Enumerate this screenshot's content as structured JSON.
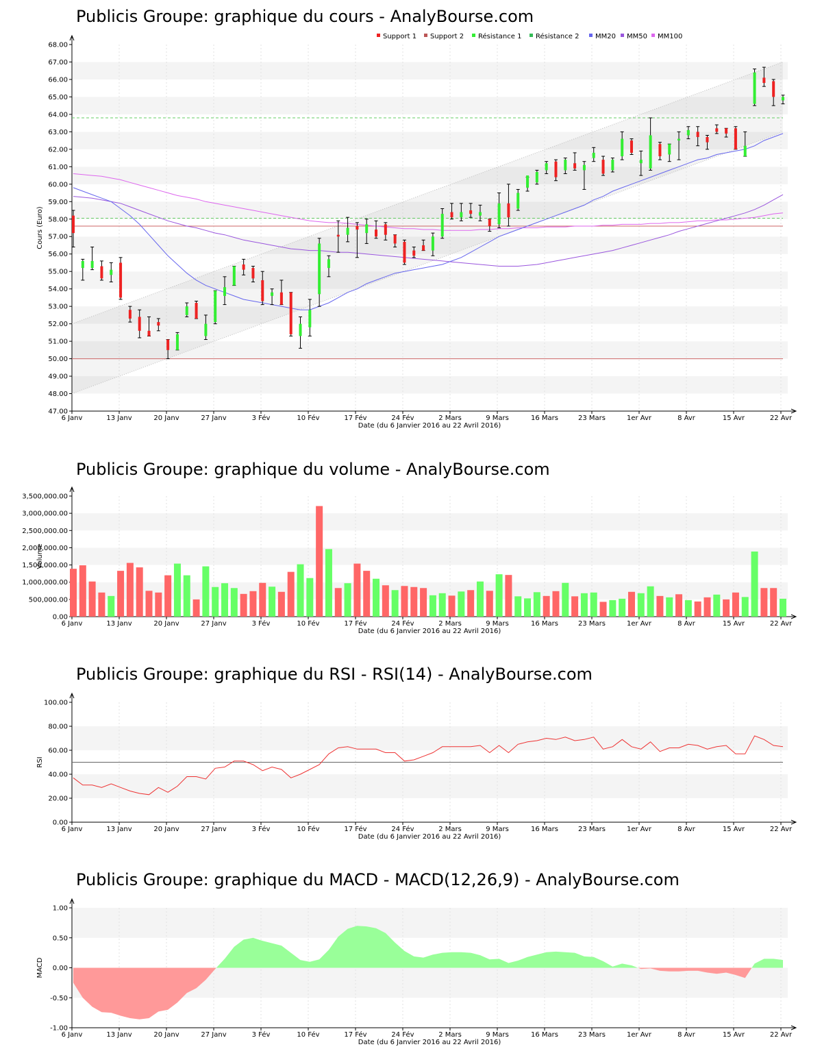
{
  "xlabel": "Date (du 6 Janvier 2016 au 22 Avril 2016)",
  "x_ticks": [
    "6 Janv",
    "13 Janv",
    "20 Janv",
    "27 Janv",
    "3 Fév",
    "10 Fév",
    "17 Fév",
    "24 Fév",
    "2 Mars",
    "9 Mars",
    "16 Mars",
    "23 Mars",
    "1er Avr",
    "8 Avr",
    "15 Avr",
    "22 Avr"
  ],
  "colors": {
    "up": "#33ee33",
    "down": "#ee2222",
    "vol_up": "#66ff66",
    "vol_down": "#ff6666",
    "support": "#cc6666",
    "resistance": "#66cc66",
    "mm20": "#6666ee",
    "mm50": "#9955dd",
    "mm100": "#dd66ee",
    "rsi": "#ee3333",
    "macd_pos": "#99ff99",
    "macd_neg": "#ff9999"
  },
  "chart_data": [
    {
      "type": "candlestick",
      "title": "Publicis Groupe: graphique du cours - AnalyBourse.com",
      "ylabel": "Cours (Euro)",
      "ylim": [
        47,
        68
      ],
      "y_ticks": [
        "47.00",
        "48.00",
        "49.00",
        "50.00",
        "51.00",
        "52.00",
        "53.00",
        "54.00",
        "55.00",
        "56.00",
        "57.00",
        "58.00",
        "59.00",
        "60.00",
        "61.00",
        "62.00",
        "63.00",
        "64.00",
        "65.00",
        "66.00",
        "67.00",
        "68.00"
      ],
      "legend": [
        "Support 1",
        "Support 2",
        "Résistance 1",
        "Résistance 2",
        "MM20",
        "MM50",
        "MM100"
      ],
      "legend_position": "top-right",
      "support_levels": [
        50.0,
        57.6
      ],
      "resistance_levels": [
        58.05,
        63.8
      ],
      "trend_channel": {
        "lower": [
          [
            0,
            48.0
          ],
          [
            1,
            63.0
          ]
        ],
        "upper": [
          [
            0,
            52.0
          ],
          [
            1,
            67.0
          ]
        ]
      },
      "candles": [
        [
          58.2,
          58.5,
          56.4,
          57.2
        ],
        [
          55.2,
          55.7,
          54.5,
          55.6
        ],
        [
          55.2,
          56.4,
          55.1,
          55.6
        ],
        [
          55.3,
          55.6,
          54.5,
          54.6
        ],
        [
          54.8,
          55.5,
          54.4,
          55.1
        ],
        [
          55.5,
          55.8,
          53.4,
          53.5
        ],
        [
          52.8,
          53.0,
          52.1,
          52.3
        ],
        [
          52.4,
          52.8,
          51.2,
          51.6
        ],
        [
          51.6,
          52.4,
          51.3,
          51.3
        ],
        [
          52.1,
          52.3,
          51.6,
          51.9
        ],
        [
          51.1,
          51.1,
          50.0,
          50.5
        ],
        [
          50.5,
          51.5,
          50.5,
          51.4
        ],
        [
          52.5,
          53.2,
          52.4,
          53.0
        ],
        [
          53.2,
          53.3,
          52.3,
          52.3
        ],
        [
          51.3,
          52.5,
          51.1,
          52.0
        ],
        [
          52.1,
          53.9,
          52.0,
          53.9
        ],
        [
          53.6,
          54.7,
          53.1,
          54.1
        ],
        [
          54.2,
          55.3,
          54.2,
          55.3
        ],
        [
          55.4,
          55.7,
          54.8,
          55.1
        ],
        [
          55.2,
          55.3,
          54.4,
          54.6
        ],
        [
          54.5,
          55.0,
          53.1,
          53.3
        ],
        [
          53.6,
          54.0,
          53.1,
          53.8
        ],
        [
          53.8,
          54.5,
          53.1,
          53.1
        ],
        [
          53.8,
          53.8,
          51.3,
          51.4
        ],
        [
          51.3,
          52.4,
          50.6,
          52.0
        ],
        [
          51.8,
          53.4,
          51.3,
          52.8
        ],
        [
          53.7,
          56.9,
          53.0,
          56.6
        ],
        [
          55.2,
          55.9,
          54.7,
          55.7
        ],
        [
          57.1,
          57.9,
          56.1,
          57.0
        ],
        [
          57.1,
          58.1,
          56.7,
          57.5
        ],
        [
          57.6,
          57.8,
          55.8,
          57.4
        ],
        [
          57.2,
          58.0,
          56.6,
          57.7
        ],
        [
          57.4,
          57.9,
          56.9,
          57.0
        ],
        [
          57.7,
          57.8,
          56.8,
          57.1
        ],
        [
          57.1,
          57.1,
          56.4,
          56.6
        ],
        [
          56.7,
          56.8,
          55.4,
          55.5
        ],
        [
          56.2,
          56.4,
          55.8,
          55.9
        ],
        [
          56.5,
          56.8,
          56.2,
          56.2
        ],
        [
          56.2,
          57.2,
          55.9,
          57.0
        ],
        [
          57.0,
          58.6,
          56.9,
          58.3
        ],
        [
          58.4,
          58.9,
          58.0,
          58.1
        ],
        [
          58.1,
          58.9,
          57.9,
          58.4
        ],
        [
          58.5,
          58.9,
          58.1,
          58.3
        ],
        [
          58.2,
          58.8,
          57.9,
          58.4
        ],
        [
          58.0,
          58.0,
          57.3,
          57.6
        ],
        [
          57.7,
          59.5,
          57.5,
          58.9
        ],
        [
          58.9,
          60.0,
          57.6,
          58.1
        ],
        [
          58.6,
          59.7,
          58.5,
          59.5
        ],
        [
          59.8,
          60.4,
          59.6,
          60.5
        ],
        [
          60.1,
          60.8,
          60.0,
          60.7
        ],
        [
          60.8,
          61.3,
          60.6,
          61.2
        ],
        [
          61.3,
          61.4,
          60.2,
          60.4
        ],
        [
          60.8,
          61.5,
          60.6,
          61.4
        ],
        [
          61.2,
          61.8,
          60.8,
          60.9
        ],
        [
          60.8,
          61.3,
          59.7,
          61.1
        ],
        [
          61.5,
          62.1,
          61.3,
          61.8
        ],
        [
          61.4,
          61.6,
          60.5,
          60.6
        ],
        [
          60.8,
          61.5,
          60.7,
          61.4
        ],
        [
          61.6,
          63.0,
          61.4,
          62.6
        ],
        [
          62.5,
          62.6,
          61.7,
          61.8
        ],
        [
          61.2,
          61.9,
          60.5,
          61.4
        ],
        [
          60.9,
          63.8,
          60.8,
          62.8
        ],
        [
          62.3,
          62.4,
          61.4,
          61.6
        ],
        [
          61.7,
          62.3,
          61.3,
          62.3
        ],
        [
          62.5,
          63.0,
          61.4,
          62.6
        ],
        [
          62.8,
          63.3,
          62.6,
          63.1
        ],
        [
          63.0,
          63.3,
          62.2,
          62.7
        ],
        [
          62.7,
          62.8,
          62.0,
          62.4
        ],
        [
          63.2,
          63.4,
          62.9,
          63.0
        ],
        [
          63.2,
          63.2,
          62.7,
          62.9
        ],
        [
          63.2,
          63.3,
          62.0,
          62.0
        ],
        [
          61.6,
          63.0,
          61.6,
          62.2
        ],
        [
          64.6,
          66.6,
          64.5,
          66.4
        ],
        [
          66.1,
          66.7,
          65.6,
          65.8
        ],
        [
          65.9,
          66.0,
          64.5,
          65.0
        ],
        [
          64.8,
          65.1,
          64.6,
          65.0
        ]
      ],
      "mm20": [
        59.8,
        59.6,
        59.4,
        59.2,
        59.0,
        58.6,
        58.2,
        57.7,
        57.1,
        56.5,
        55.9,
        55.4,
        54.9,
        54.5,
        54.2,
        54.0,
        53.8,
        53.6,
        53.4,
        53.3,
        53.2,
        53.1,
        53.0,
        52.9,
        52.8,
        52.8,
        53.0,
        53.2,
        53.5,
        53.8,
        54.0,
        54.3,
        54.5,
        54.7,
        54.9,
        55.0,
        55.1,
        55.2,
        55.3,
        55.4,
        55.6,
        55.8,
        56.1,
        56.4,
        56.7,
        57.0,
        57.2,
        57.4,
        57.6,
        57.8,
        58.0,
        58.2,
        58.4,
        58.6,
        58.8,
        59.1,
        59.3,
        59.6,
        59.8,
        60.0,
        60.2,
        60.4,
        60.6,
        60.8,
        61.0,
        61.2,
        61.4,
        61.5,
        61.7,
        61.8,
        61.9,
        62.0,
        62.2,
        62.5,
        62.7,
        62.9
      ],
      "mm50": [
        59.3,
        59.25,
        59.2,
        59.1,
        59.0,
        58.9,
        58.7,
        58.5,
        58.3,
        58.1,
        57.9,
        57.75,
        57.6,
        57.5,
        57.35,
        57.2,
        57.1,
        56.95,
        56.8,
        56.7,
        56.6,
        56.5,
        56.4,
        56.3,
        56.25,
        56.2,
        56.2,
        56.15,
        56.1,
        56.1,
        56.05,
        56.0,
        55.95,
        55.9,
        55.85,
        55.8,
        55.75,
        55.7,
        55.65,
        55.6,
        55.55,
        55.5,
        55.45,
        55.4,
        55.35,
        55.3,
        55.3,
        55.3,
        55.35,
        55.4,
        55.5,
        55.6,
        55.7,
        55.8,
        55.9,
        56.0,
        56.1,
        56.2,
        56.35,
        56.5,
        56.65,
        56.8,
        56.95,
        57.1,
        57.3,
        57.45,
        57.6,
        57.75,
        57.9,
        58.05,
        58.2,
        58.35,
        58.55,
        58.8,
        59.1,
        59.4
      ],
      "mm100": [
        60.6,
        60.55,
        60.5,
        60.45,
        60.35,
        60.25,
        60.1,
        59.95,
        59.8,
        59.65,
        59.5,
        59.35,
        59.25,
        59.15,
        59.0,
        58.9,
        58.8,
        58.7,
        58.6,
        58.5,
        58.4,
        58.3,
        58.2,
        58.1,
        58.0,
        57.9,
        57.85,
        57.8,
        57.8,
        57.75,
        57.7,
        57.65,
        57.6,
        57.55,
        57.5,
        57.45,
        57.45,
        57.4,
        57.4,
        57.35,
        57.35,
        57.35,
        57.35,
        57.4,
        57.4,
        57.45,
        57.45,
        57.5,
        57.5,
        57.5,
        57.55,
        57.55,
        57.55,
        57.6,
        57.6,
        57.6,
        57.65,
        57.65,
        57.7,
        57.7,
        57.7,
        57.75,
        57.75,
        57.8,
        57.8,
        57.85,
        57.9,
        57.9,
        57.95,
        57.95,
        58.0,
        58.05,
        58.1,
        58.2,
        58.3,
        58.35
      ]
    },
    {
      "type": "bar",
      "title": "Publicis Groupe: graphique du volume - AnalyBourse.com",
      "ylabel": "Volume",
      "ylim": [
        0,
        3500000
      ],
      "y_ticks": [
        "0.00",
        "500,000.00",
        "1,000,000.00",
        "1,500,000.00",
        "2,000,000.00",
        "2,500,000.00",
        "3,000,000.00",
        "3,500,000.00"
      ],
      "values": [
        1390000,
        1490000,
        1020000,
        700000,
        600000,
        1330000,
        1560000,
        1430000,
        750000,
        700000,
        1200000,
        1540000,
        1200000,
        500000,
        1460000,
        860000,
        970000,
        830000,
        660000,
        740000,
        980000,
        870000,
        720000,
        1300000,
        1520000,
        1120000,
        3210000,
        1960000,
        830000,
        970000,
        1540000,
        1330000,
        1100000,
        910000,
        770000,
        890000,
        860000,
        830000,
        620000,
        680000,
        610000,
        730000,
        770000,
        1020000,
        750000,
        1230000,
        1210000,
        590000,
        530000,
        710000,
        600000,
        740000,
        980000,
        590000,
        680000,
        700000,
        430000,
        480000,
        520000,
        720000,
        680000,
        880000,
        600000,
        560000,
        650000,
        480000,
        440000,
        560000,
        640000,
        500000,
        700000,
        570000,
        1890000,
        830000,
        830000,
        520000
      ],
      "directions": [
        "d",
        "d",
        "d",
        "d",
        "u",
        "d",
        "d",
        "d",
        "d",
        "d",
        "d",
        "u",
        "u",
        "d",
        "u",
        "u",
        "u",
        "u",
        "d",
        "d",
        "d",
        "u",
        "d",
        "d",
        "u",
        "u",
        "d",
        "u",
        "d",
        "u",
        "d",
        "d",
        "u",
        "d",
        "u",
        "d",
        "d",
        "d",
        "u",
        "u",
        "d",
        "u",
        "d",
        "u",
        "d",
        "u",
        "d",
        "u",
        "u",
        "u",
        "d",
        "d",
        "u",
        "d",
        "u",
        "u",
        "d",
        "u",
        "u",
        "d",
        "u",
        "u",
        "d",
        "u",
        "d",
        "u",
        "d",
        "d",
        "u",
        "d",
        "d",
        "u",
        "u",
        "d",
        "d",
        "u"
      ]
    },
    {
      "type": "line",
      "title": "Publicis Groupe: graphique du RSI - RSI(14) - AnalyBourse.com",
      "ylabel": "RSI",
      "ylim": [
        0,
        100
      ],
      "y_ticks": [
        "0.00",
        "20.00",
        "40.00",
        "60.00",
        "80.00",
        "100.00"
      ],
      "reference_line": 50,
      "values": [
        37,
        31,
        31,
        29,
        32,
        29,
        26,
        24,
        23,
        29,
        25,
        30,
        38,
        38,
        36,
        45,
        46,
        51,
        51,
        48,
        43,
        46,
        44,
        37,
        40,
        44,
        48,
        57,
        62,
        63,
        61,
        61,
        61,
        58,
        58,
        51,
        52,
        55,
        58,
        63,
        63,
        63,
        63,
        64,
        58,
        64,
        58,
        65,
        67,
        68,
        70,
        69,
        71,
        68,
        69,
        71,
        61,
        63,
        69,
        63,
        61,
        67,
        59,
        62,
        62,
        65,
        64,
        61,
        63,
        64,
        57,
        57,
        72,
        69,
        64,
        63
      ]
    },
    {
      "type": "area",
      "title": "Publicis Groupe: graphique du MACD - MACD(12,26,9) - AnalyBourse.com",
      "ylabel": "MACD",
      "ylim": [
        -1,
        1
      ],
      "y_ticks": [
        "-1.00",
        "-0.50",
        "0.00",
        "0.50",
        "1.00"
      ],
      "values": [
        -0.25,
        -0.5,
        -0.65,
        -0.74,
        -0.75,
        -0.8,
        -0.84,
        -0.86,
        -0.84,
        -0.73,
        -0.7,
        -0.58,
        -0.42,
        -0.34,
        -0.2,
        -0.02,
        0.15,
        0.35,
        0.47,
        0.5,
        0.45,
        0.41,
        0.37,
        0.25,
        0.13,
        0.1,
        0.14,
        0.3,
        0.52,
        0.65,
        0.7,
        0.69,
        0.66,
        0.58,
        0.42,
        0.28,
        0.19,
        0.17,
        0.22,
        0.25,
        0.26,
        0.26,
        0.25,
        0.21,
        0.14,
        0.15,
        0.08,
        0.12,
        0.18,
        0.22,
        0.26,
        0.27,
        0.26,
        0.25,
        0.19,
        0.18,
        0.11,
        0.02,
        0.07,
        0.04,
        -0.02,
        -0.01,
        -0.05,
        -0.06,
        -0.06,
        -0.05,
        -0.05,
        -0.08,
        -0.1,
        -0.08,
        -0.12,
        -0.17,
        0.07,
        0.15,
        0.15,
        0.13
      ]
    }
  ]
}
